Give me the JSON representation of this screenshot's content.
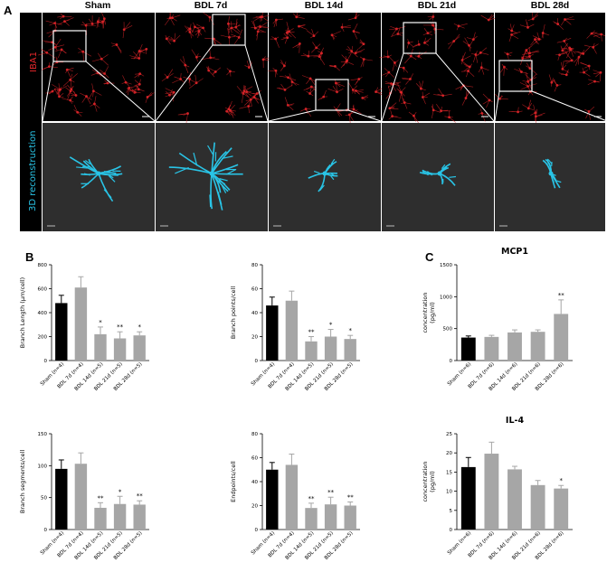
{
  "panel_labels": {
    "a": "A",
    "b": "B",
    "c": "C"
  },
  "panelA": {
    "columns": [
      "Sham",
      "BDL 7d",
      "BDL 14d",
      "BDL 21d",
      "BDL 28d"
    ],
    "row_labels": {
      "top": "IBA1",
      "bottom": "3D reconstruction"
    },
    "colors": {
      "iba1": "#e0262a",
      "reconstruction": "#29c4e6",
      "bg": "#000000",
      "recon_bg": "#2e2e2e"
    }
  },
  "chart_data": [
    {
      "id": "branch-length",
      "type": "bar",
      "title": "",
      "ylabel": "Branch Length (μm/cell)",
      "categories": [
        "Sham (n=4)",
        "BDL 7d (n=4)",
        "BDL 14d (n=5)",
        "BDL 21d (n=5)",
        "BDL 28d (n=5)"
      ],
      "values": [
        480,
        610,
        220,
        185,
        210
      ],
      "errors": [
        65,
        90,
        60,
        55,
        30
      ],
      "significance": [
        "",
        "",
        "*",
        "**",
        "*"
      ],
      "ylim": [
        0,
        800
      ],
      "yticks": [
        "0",
        "200",
        "400",
        "600",
        "800"
      ],
      "colors": [
        "#000000",
        "#a6a6a6",
        "#a6a6a6",
        "#a6a6a6",
        "#a6a6a6"
      ]
    },
    {
      "id": "branch-points",
      "type": "bar",
      "title": "",
      "ylabel": "Branch points/cell",
      "categories": [
        "Sham (n=4)",
        "BDL 7d (n=4)",
        "BDL 14d (n=5)",
        "BDL 21d (n=5)",
        "BDL 28d (n=5)"
      ],
      "values": [
        46,
        50,
        16,
        20,
        18
      ],
      "errors": [
        7,
        8,
        4,
        6,
        3
      ],
      "significance": [
        "",
        "",
        "**",
        "*",
        "*"
      ],
      "ylim": [
        0,
        80
      ],
      "yticks": [
        "0",
        "20",
        "40",
        "60",
        "80"
      ],
      "colors": [
        "#000000",
        "#a6a6a6",
        "#a6a6a6",
        "#a6a6a6",
        "#a6a6a6"
      ]
    },
    {
      "id": "mcp1",
      "type": "bar",
      "title": "MCP1",
      "ylabel": "concentration (pg/ml)",
      "categories": [
        "Sham (n=6)",
        "BDL 7d (n=6)",
        "BDL 14d (n=6)",
        "BDL 21d (n=6)",
        "BDL 28d (n=6)"
      ],
      "values": [
        360,
        370,
        440,
        450,
        730
      ],
      "errors": [
        25,
        25,
        40,
        30,
        220
      ],
      "significance": [
        "",
        "",
        "",
        "",
        "**"
      ],
      "ylim": [
        0,
        1500
      ],
      "yticks": [
        "0",
        "500",
        "1000",
        "1500"
      ],
      "colors": [
        "#000000",
        "#a6a6a6",
        "#a6a6a6",
        "#a6a6a6",
        "#a6a6a6"
      ]
    },
    {
      "id": "branch-segments",
      "type": "bar",
      "title": "",
      "ylabel": "Branch segments/cell",
      "categories": [
        "Sham (n=4)",
        "BDL 7d (n=4)",
        "BDL 14d (n=5)",
        "BDL 21d (n=5)",
        "BDL 28d (n=5)"
      ],
      "values": [
        95,
        103,
        34,
        40,
        39
      ],
      "errors": [
        14,
        17,
        8,
        12,
        6
      ],
      "significance": [
        "",
        "",
        "**",
        "*",
        "**"
      ],
      "ylim": [
        0,
        150
      ],
      "yticks": [
        "0",
        "50",
        "100",
        "150"
      ],
      "colors": [
        "#000000",
        "#a6a6a6",
        "#a6a6a6",
        "#a6a6a6",
        "#a6a6a6"
      ]
    },
    {
      "id": "endpoints",
      "type": "bar",
      "title": "",
      "ylabel": "Endpoints/cell",
      "categories": [
        "Sham (n=4)",
        "BDL 7d (n=4)",
        "BDL 14d (n=5)",
        "BDL 21d (n=5)",
        "BDL 28d (n=5)"
      ],
      "values": [
        50,
        54,
        18,
        21,
        20
      ],
      "errors": [
        6,
        9,
        4,
        6,
        3
      ],
      "significance": [
        "",
        "",
        "**",
        "**",
        "**"
      ],
      "ylim": [
        0,
        80
      ],
      "yticks": [
        "0",
        "20",
        "40",
        "60",
        "80"
      ],
      "colors": [
        "#000000",
        "#a6a6a6",
        "#a6a6a6",
        "#a6a6a6",
        "#a6a6a6"
      ]
    },
    {
      "id": "il4",
      "type": "bar",
      "title": "IL-4",
      "ylabel": "concentration (pg/ml)",
      "categories": [
        "Sham (n=6)",
        "BDL 7d (n=6)",
        "BDL 14d (n=6)",
        "BDL 21d (n=6)",
        "BDL 28d (n=6)"
      ],
      "values": [
        16.3,
        19.8,
        15.7,
        11.6,
        10.7
      ],
      "errors": [
        2.5,
        3.0,
        0.8,
        1.2,
        0.8
      ],
      "significance": [
        "",
        "",
        "",
        "",
        "*"
      ],
      "ylim": [
        0,
        25
      ],
      "yticks": [
        "0",
        "5",
        "10",
        "15",
        "20",
        "25"
      ],
      "colors": [
        "#000000",
        "#a6a6a6",
        "#a6a6a6",
        "#a6a6a6",
        "#a6a6a6"
      ]
    }
  ]
}
